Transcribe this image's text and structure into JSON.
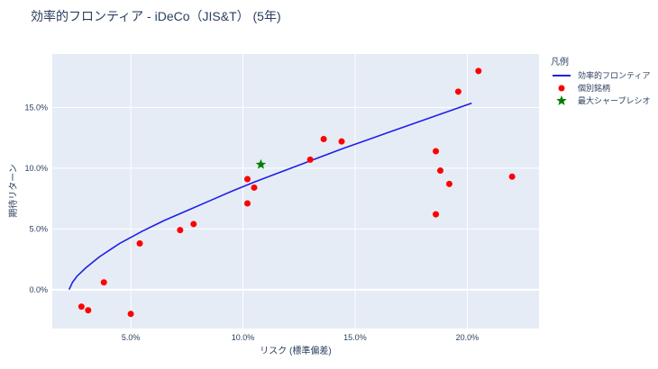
{
  "chart_data": {
    "type": "scatter",
    "title": "効率的フロンティア - iDeCo（JIS&T） (5年)",
    "xlabel": "リスク (標準偏差)",
    "ylabel": "期待リターン",
    "xlim": [
      0.015,
      0.232
    ],
    "ylim": [
      -0.032,
      0.194
    ],
    "x_ticks": [
      0.05,
      0.1,
      0.15,
      0.2
    ],
    "x_tick_labels": [
      "5.0%",
      "10.0%",
      "15.0%",
      "20.0%"
    ],
    "y_ticks": [
      0.0,
      0.05,
      0.1,
      0.15
    ],
    "y_tick_labels": [
      "0.0%",
      "5.0%",
      "10.0%",
      "15.0%"
    ],
    "grid": true,
    "legend": {
      "title": "凡例",
      "placement": "right",
      "entries": [
        "効率的フロンティア",
        "個別銘柄",
        "最大シャープレシオ"
      ]
    },
    "series": [
      {
        "name": "効率的フロンティア",
        "kind": "line",
        "color": "#1f1fe6",
        "points": [
          [
            0.0225,
            0.0
          ],
          [
            0.024,
            0.006
          ],
          [
            0.026,
            0.011
          ],
          [
            0.03,
            0.018
          ],
          [
            0.036,
            0.027
          ],
          [
            0.045,
            0.038
          ],
          [
            0.055,
            0.048
          ],
          [
            0.065,
            0.057
          ],
          [
            0.075,
            0.065
          ],
          [
            0.085,
            0.073
          ],
          [
            0.095,
            0.081
          ],
          [
            0.105,
            0.0885
          ],
          [
            0.115,
            0.0955
          ],
          [
            0.125,
            0.1025
          ],
          [
            0.135,
            0.1095
          ],
          [
            0.145,
            0.1165
          ],
          [
            0.155,
            0.123
          ],
          [
            0.165,
            0.1295
          ],
          [
            0.175,
            0.136
          ],
          [
            0.185,
            0.1425
          ],
          [
            0.195,
            0.149
          ],
          [
            0.202,
            0.1535
          ]
        ]
      },
      {
        "name": "個別銘柄",
        "kind": "markers",
        "color": "#ff0000",
        "points": [
          [
            0.028,
            -0.014
          ],
          [
            0.031,
            -0.017
          ],
          [
            0.038,
            0.006
          ],
          [
            0.05,
            -0.02
          ],
          [
            0.054,
            0.038
          ],
          [
            0.072,
            0.049
          ],
          [
            0.078,
            0.054
          ],
          [
            0.102,
            0.091
          ],
          [
            0.105,
            0.084
          ],
          [
            0.102,
            0.071
          ],
          [
            0.13,
            0.107
          ],
          [
            0.136,
            0.124
          ],
          [
            0.144,
            0.122
          ],
          [
            0.186,
            0.114
          ],
          [
            0.188,
            0.098
          ],
          [
            0.192,
            0.087
          ],
          [
            0.186,
            0.062
          ],
          [
            0.196,
            0.163
          ],
          [
            0.205,
            0.18
          ],
          [
            0.22,
            0.093
          ]
        ]
      },
      {
        "name": "最大シャープレシオ",
        "kind": "star",
        "color": "#008000",
        "points": [
          [
            0.108,
            0.103
          ]
        ]
      }
    ]
  }
}
